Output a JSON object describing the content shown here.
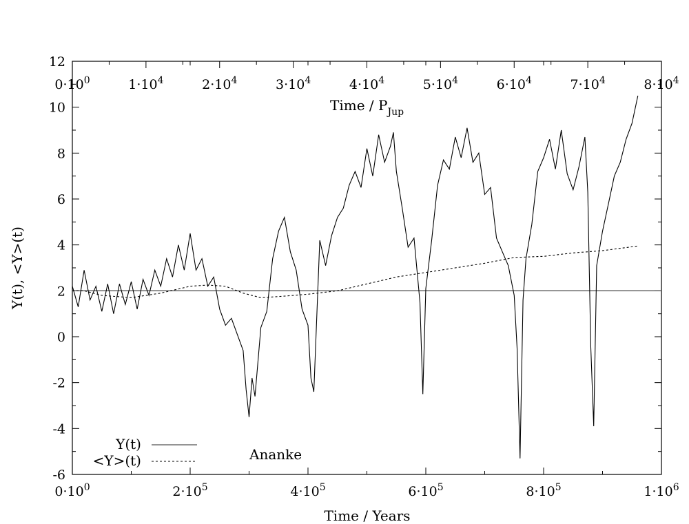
{
  "chart_data": {
    "type": "line",
    "title": "",
    "annotation": "Ananke",
    "xlabel": "Time / Years",
    "x2label_main": "Time / P",
    "x2label_sub": "Jup",
    "ylabel": "Y(t), <Y>(t)",
    "xlim": [
      0,
      1000000
    ],
    "ylim": [
      -6,
      12
    ],
    "x2lim": [
      0,
      80000
    ],
    "grid": false,
    "legend_position": "bottom-left",
    "x_ticks": [
      {
        "value": 0,
        "mant": "0·10",
        "exp": "0"
      },
      {
        "value": 200000,
        "mant": "2·10",
        "exp": "5"
      },
      {
        "value": 400000,
        "mant": "4·10",
        "exp": "5"
      },
      {
        "value": 600000,
        "mant": "6·10",
        "exp": "5"
      },
      {
        "value": 800000,
        "mant": "8·10",
        "exp": "5"
      },
      {
        "value": 1000000,
        "mant": "1·10",
        "exp": "6"
      }
    ],
    "x2_ticks": [
      {
        "value": 0,
        "mant": "0·10",
        "exp": "0"
      },
      {
        "value": 10000,
        "mant": "1·10",
        "exp": "4"
      },
      {
        "value": 20000,
        "mant": "2·10",
        "exp": "4"
      },
      {
        "value": 30000,
        "mant": "3·10",
        "exp": "4"
      },
      {
        "value": 40000,
        "mant": "4·10",
        "exp": "4"
      },
      {
        "value": 50000,
        "mant": "5·10",
        "exp": "4"
      },
      {
        "value": 60000,
        "mant": "6·10",
        "exp": "4"
      },
      {
        "value": 70000,
        "mant": "7·10",
        "exp": "4"
      },
      {
        "value": 80000,
        "mant": "8·10",
        "exp": "4"
      }
    ],
    "y_ticks": [
      {
        "value": 12,
        "label": "12"
      },
      {
        "value": 10,
        "label": "10"
      },
      {
        "value": 8,
        "label": "8"
      },
      {
        "value": 6,
        "label": "6"
      },
      {
        "value": 4,
        "label": "4"
      },
      {
        "value": 2,
        "label": "2"
      },
      {
        "value": 0,
        "label": "0"
      },
      {
        "value": -2,
        "label": "-2"
      },
      {
        "value": -4,
        "label": "-4"
      },
      {
        "value": -6,
        "label": "-6"
      }
    ],
    "reference_line": {
      "y": 2
    },
    "series": [
      {
        "name": "Y(t)",
        "style": "solid",
        "x": [
          0,
          10000,
          20000,
          30000,
          40000,
          50000,
          60000,
          70000,
          80000,
          90000,
          100000,
          110000,
          120000,
          130000,
          140000,
          150000,
          160000,
          170000,
          180000,
          190000,
          200000,
          210000,
          220000,
          230000,
          240000,
          250000,
          260000,
          270000,
          280000,
          290000,
          295000,
          300000,
          305000,
          310000,
          320000,
          330000,
          340000,
          350000,
          360000,
          370000,
          380000,
          390000,
          400000,
          405000,
          410000,
          420000,
          430000,
          440000,
          450000,
          460000,
          470000,
          480000,
          490000,
          500000,
          510000,
          520000,
          530000,
          540000,
          545000,
          550000,
          560000,
          570000,
          580000,
          590000,
          595000,
          600000,
          610000,
          620000,
          630000,
          640000,
          650000,
          660000,
          670000,
          680000,
          690000,
          700000,
          710000,
          720000,
          730000,
          740000,
          750000,
          755000,
          760000,
          765000,
          770000,
          780000,
          790000,
          800000,
          810000,
          820000,
          830000,
          840000,
          850000,
          860000,
          870000,
          875000,
          880000,
          885000,
          890000,
          900000,
          910000,
          920000,
          930000,
          940000,
          950000,
          960000
        ],
        "y": [
          2.2,
          1.3,
          2.9,
          1.6,
          2.2,
          1.1,
          2.3,
          1.0,
          2.3,
          1.4,
          2.4,
          1.2,
          2.5,
          1.8,
          2.9,
          2.2,
          3.4,
          2.6,
          4.0,
          2.9,
          4.5,
          2.9,
          3.4,
          2.2,
          2.6,
          1.2,
          0.5,
          0.8,
          0.1,
          -0.6,
          -2.3,
          -3.5,
          -1.8,
          -2.6,
          0.4,
          1.1,
          3.4,
          4.6,
          5.2,
          3.7,
          2.9,
          1.2,
          0.5,
          -1.8,
          -2.4,
          4.2,
          3.1,
          4.4,
          5.2,
          5.6,
          6.6,
          7.2,
          6.5,
          8.2,
          7.0,
          8.8,
          7.6,
          8.3,
          8.9,
          7.2,
          5.6,
          3.9,
          4.3,
          1.5,
          -2.5,
          2.1,
          4.2,
          6.6,
          7.7,
          7.3,
          8.7,
          7.8,
          9.1,
          7.6,
          8.0,
          6.2,
          6.5,
          4.3,
          3.7,
          3.1,
          1.8,
          -0.5,
          -5.3,
          1.6,
          3.4,
          4.9,
          7.2,
          7.8,
          8.6,
          7.3,
          9.0,
          7.1,
          6.4,
          7.4,
          8.7,
          6.3,
          -0.4,
          -3.9,
          3.1,
          4.6,
          5.8,
          7.0,
          7.6,
          8.6,
          9.3,
          10.5
        ]
      },
      {
        "name": "<Y>(t)",
        "style": "dashed",
        "x": [
          0,
          20000,
          50000,
          100000,
          150000,
          200000,
          230000,
          260000,
          290000,
          320000,
          350000,
          400000,
          450000,
          500000,
          550000,
          600000,
          650000,
          700000,
          750000,
          800000,
          850000,
          900000,
          960000
        ],
        "y": [
          2.0,
          2.0,
          1.8,
          1.7,
          1.9,
          2.2,
          2.25,
          2.2,
          1.9,
          1.7,
          1.75,
          1.85,
          2.0,
          2.3,
          2.6,
          2.8,
          3.0,
          3.2,
          3.45,
          3.5,
          3.65,
          3.75,
          3.95
        ]
      }
    ]
  }
}
